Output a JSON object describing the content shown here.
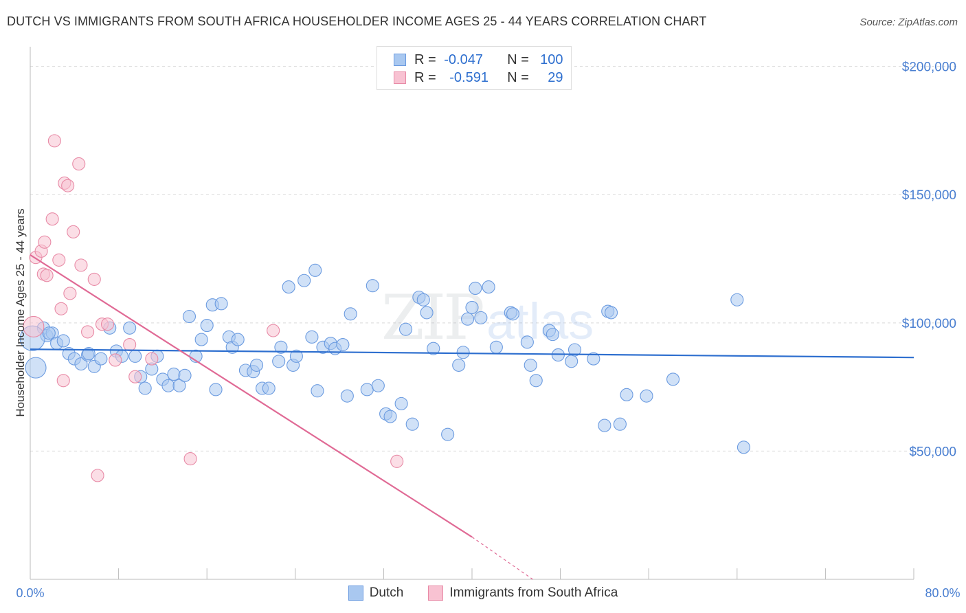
{
  "title": "DUTCH VS IMMIGRANTS FROM SOUTH AFRICA HOUSEHOLDER INCOME AGES 25 - 44 YEARS CORRELATION CHART",
  "source": "Source: ZipAtlas.com",
  "legend": {
    "rows": [
      {
        "r_label": "R =",
        "r_value": "-0.047",
        "n_label": "N =",
        "n_value": "100",
        "color": "#a9c8f0",
        "border": "#6b9be0"
      },
      {
        "r_label": "R =",
        "r_value": "-0.591",
        "n_label": "N =",
        "n_value": "29",
        "color": "#f8c2d2",
        "border": "#e88aa6"
      }
    ]
  },
  "bottom_legend": [
    "Dutch",
    "Immigrants from South Africa"
  ],
  "chart_data": {
    "type": "scatter",
    "title": "DUTCH VS IMMIGRANTS FROM SOUTH AFRICA HOUSEHOLDER INCOME AGES 25 - 44 YEARS CORRELATION CHART",
    "ylabel": "Householder Income Ages 25 - 44 years",
    "xlabel": "",
    "x_ticks": [
      "0.0%",
      "80.0%"
    ],
    "y_ticks": [
      "$50,000",
      "$100,000",
      "$150,000",
      "$200,000"
    ],
    "xlim": [
      0,
      80
    ],
    "ylim": [
      0,
      205000
    ],
    "grid": true,
    "legend_position": "top-center",
    "watermark": "ZIPatlas",
    "colors": {
      "dutch": "#6b9be0",
      "dutch_fill": "#a9c8f0",
      "sa": "#e88aa6",
      "sa_fill": "#f8c2d2",
      "dutch_line": "#2e6fcf",
      "sa_line": "#e06a95"
    },
    "series": [
      {
        "name": "Dutch",
        "trend": {
          "x": [
            0,
            80
          ],
          "y": [
            89700,
            86500
          ]
        },
        "points": [
          [
            0.5,
            82500,
            1
          ],
          [
            1.2,
            98000,
            0
          ],
          [
            1.5,
            95000,
            0
          ],
          [
            2,
            96000,
            0
          ],
          [
            2.4,
            92000,
            0
          ],
          [
            3,
            93000,
            0
          ],
          [
            3.5,
            88000,
            0
          ],
          [
            4,
            86000,
            0
          ],
          [
            4.6,
            84000,
            0
          ],
          [
            5.2,
            87500,
            0
          ],
          [
            5.8,
            83000,
            0
          ],
          [
            6.4,
            86000,
            0
          ],
          [
            7.2,
            98000,
            0
          ],
          [
            7.8,
            89000,
            0
          ],
          [
            8.3,
            87000,
            0
          ],
          [
            9,
            98000,
            0
          ],
          [
            9.5,
            87000,
            0
          ],
          [
            10,
            79000,
            0
          ],
          [
            10.4,
            74500,
            0
          ],
          [
            11,
            82000,
            0
          ],
          [
            11.5,
            87000,
            0
          ],
          [
            12,
            78000,
            0
          ],
          [
            12.5,
            75500,
            0
          ],
          [
            13,
            80000,
            0
          ],
          [
            13.5,
            75500,
            0
          ],
          [
            14,
            79500,
            0
          ],
          [
            14.4,
            102500,
            0
          ],
          [
            15,
            87000,
            0
          ],
          [
            15.5,
            93500,
            0
          ],
          [
            16,
            99000,
            0
          ],
          [
            16.5,
            107000,
            0
          ],
          [
            16.8,
            74000,
            0
          ],
          [
            17.3,
            107500,
            0
          ],
          [
            18,
            94500,
            0
          ],
          [
            18.3,
            90500,
            0
          ],
          [
            18.8,
            93500,
            0
          ],
          [
            19.5,
            81500,
            0
          ],
          [
            20.2,
            81000,
            0
          ],
          [
            20.5,
            83500,
            0
          ],
          [
            21,
            74500,
            0
          ],
          [
            21.6,
            74500,
            0
          ],
          [
            22.5,
            85000,
            0
          ],
          [
            22.7,
            90500,
            0
          ],
          [
            23.4,
            114000,
            0
          ],
          [
            23.8,
            83500,
            0
          ],
          [
            24.1,
            87000,
            0
          ],
          [
            24.8,
            116500,
            0
          ],
          [
            25.5,
            94500,
            0
          ],
          [
            25.8,
            120500,
            0
          ],
          [
            26,
            73500,
            0
          ],
          [
            26.5,
            90500,
            0
          ],
          [
            27.2,
            92000,
            0
          ],
          [
            27.6,
            90000,
            0
          ],
          [
            28.3,
            91500,
            0
          ],
          [
            28.7,
            71500,
            0
          ],
          [
            29,
            103500,
            0
          ],
          [
            30.5,
            74000,
            0
          ],
          [
            31,
            114500,
            0
          ],
          [
            31.5,
            75500,
            0
          ],
          [
            32.2,
            64500,
            0
          ],
          [
            32.6,
            63500,
            0
          ],
          [
            33.6,
            68500,
            0
          ],
          [
            34,
            97500,
            0
          ],
          [
            34.6,
            60500,
            0
          ],
          [
            35.2,
            110000,
            0
          ],
          [
            35.6,
            109000,
            0
          ],
          [
            35.9,
            104000,
            0
          ],
          [
            36.5,
            90000,
            0
          ],
          [
            37.8,
            56500,
            0
          ],
          [
            38.8,
            83500,
            0
          ],
          [
            39.2,
            88500,
            0
          ],
          [
            39.6,
            101500,
            0
          ],
          [
            40,
            106000,
            0
          ],
          [
            40.3,
            113500,
            0
          ],
          [
            40.8,
            102000,
            0
          ],
          [
            41.5,
            114000,
            0
          ],
          [
            42.2,
            90500,
            0
          ],
          [
            43.5,
            104000,
            0
          ],
          [
            43.7,
            103500,
            0
          ],
          [
            45,
            92500,
            0
          ],
          [
            45.3,
            83500,
            0
          ],
          [
            45.8,
            77500,
            0
          ],
          [
            47,
            97000,
            0
          ],
          [
            47.3,
            95500,
            0
          ],
          [
            47.8,
            87500,
            0
          ],
          [
            49,
            85000,
            0
          ],
          [
            49.3,
            89500,
            0
          ],
          [
            51,
            86000,
            0
          ],
          [
            52,
            60000,
            0
          ],
          [
            52.3,
            104500,
            0
          ],
          [
            52.6,
            104000,
            0
          ],
          [
            53.4,
            60500,
            0
          ],
          [
            54,
            72000,
            0
          ],
          [
            55.8,
            71500,
            0
          ],
          [
            58.2,
            78000,
            0
          ],
          [
            64,
            109000,
            0
          ],
          [
            64.6,
            51500,
            0
          ],
          [
            0.2,
            94000,
            2
          ],
          [
            1.7,
            96000,
            0
          ],
          [
            5.3,
            88000,
            0
          ]
        ]
      },
      {
        "name": "Immigrants from South Africa",
        "trend": {
          "x": [
            0,
            40
          ],
          "y": [
            126500,
            16500
          ]
        },
        "trend_dashed": {
          "x": [
            40,
            45.5
          ],
          "y": [
            16500,
            0
          ]
        },
        "points": [
          [
            0.3,
            98500,
            1
          ],
          [
            0.5,
            125500,
            0
          ],
          [
            1,
            128000,
            0
          ],
          [
            1.2,
            119000,
            0
          ],
          [
            1.3,
            131500,
            0
          ],
          [
            1.5,
            118500,
            0
          ],
          [
            2,
            140500,
            0
          ],
          [
            2.2,
            171000,
            0
          ],
          [
            2.6,
            124500,
            0
          ],
          [
            2.8,
            105500,
            0
          ],
          [
            3,
            77500,
            0
          ],
          [
            3.1,
            154500,
            0
          ],
          [
            3.4,
            153500,
            0
          ],
          [
            3.6,
            111500,
            0
          ],
          [
            3.9,
            135500,
            0
          ],
          [
            4.4,
            162000,
            0
          ],
          [
            4.6,
            122500,
            0
          ],
          [
            5.2,
            96500,
            0
          ],
          [
            5.8,
            117000,
            0
          ],
          [
            6.1,
            40500,
            0
          ],
          [
            6.5,
            99500,
            0
          ],
          [
            7,
            99500,
            0
          ],
          [
            7.7,
            85500,
            0
          ],
          [
            9,
            91500,
            0
          ],
          [
            9.5,
            79000,
            0
          ],
          [
            11,
            86000,
            0
          ],
          [
            14.5,
            47000,
            0
          ],
          [
            22,
            97000,
            0
          ],
          [
            33.2,
            46000,
            0
          ]
        ]
      }
    ]
  }
}
